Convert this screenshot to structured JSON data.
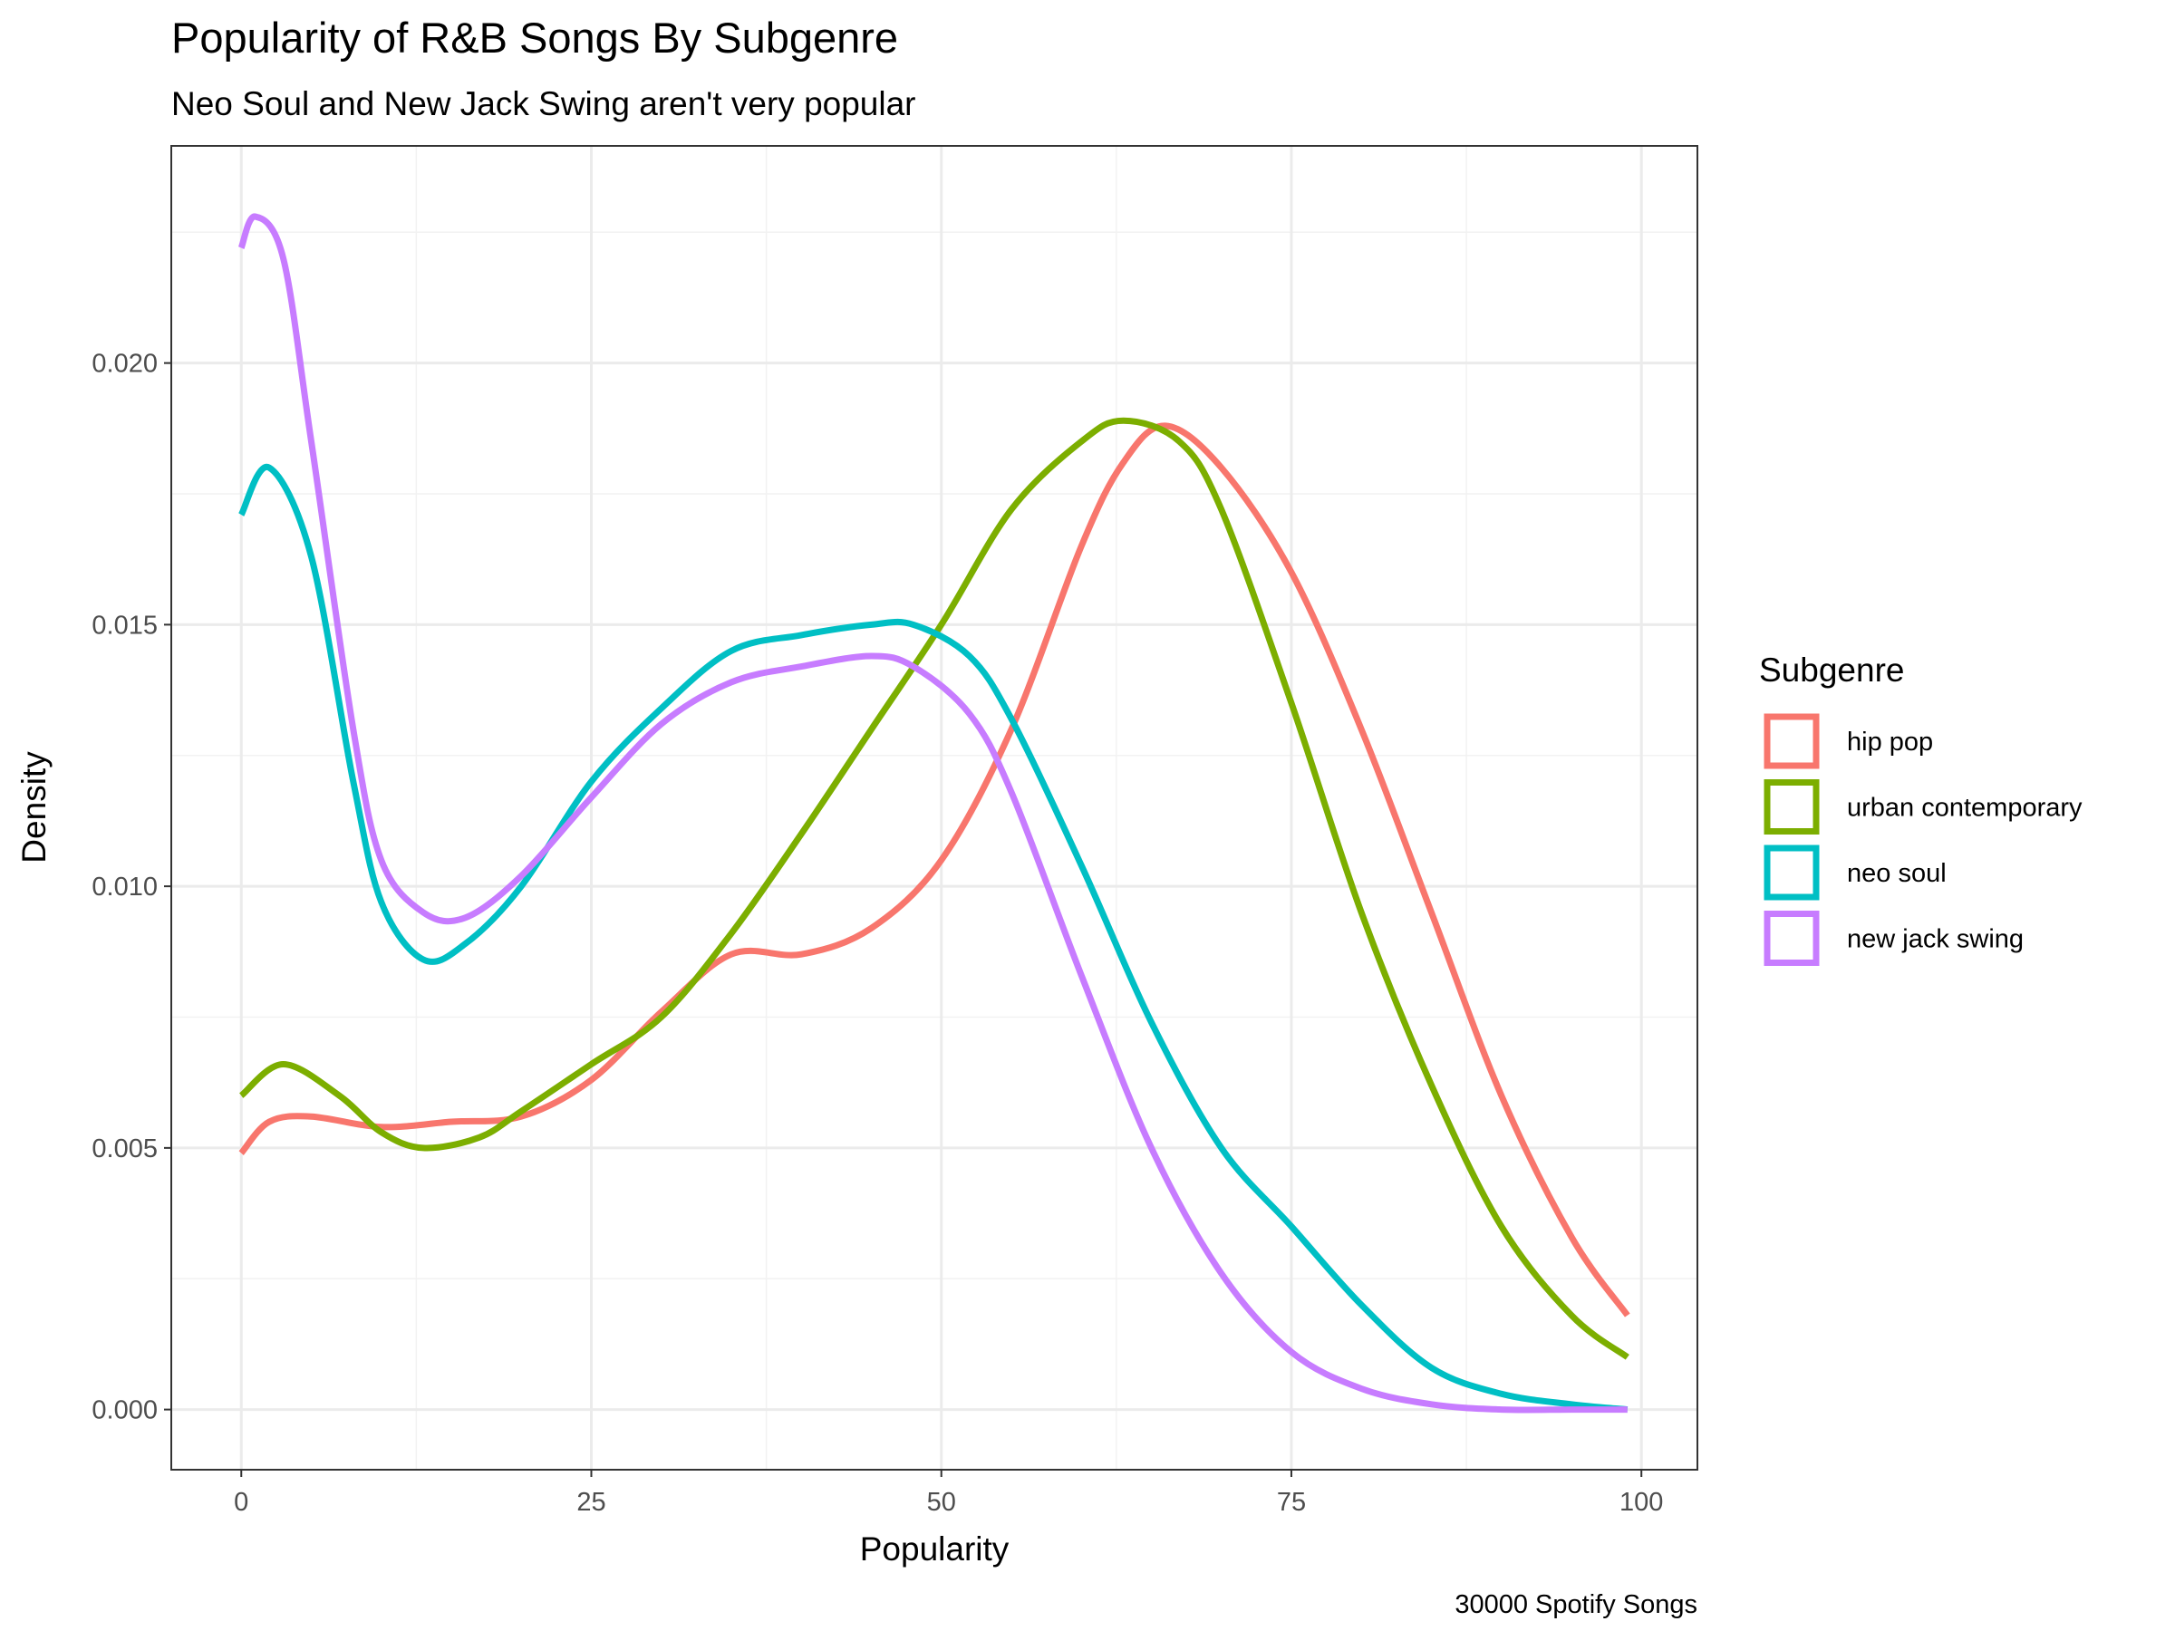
{
  "chart_data": {
    "type": "line",
    "title": "Popularity of R&B Songs By Subgenre",
    "subtitle": "Neo Soul and New Jack Swing aren't very popular",
    "xlabel": "Popularity",
    "ylabel": "Density",
    "caption": "30000 Spotify Songs",
    "xlim": [
      -5,
      104
    ],
    "ylim": [
      -0.00115,
      0.02415
    ],
    "x_ticks": [
      0,
      25,
      50,
      75,
      100
    ],
    "x_tick_labels": [
      "0",
      "25",
      "50",
      "75",
      "100"
    ],
    "y_ticks": [
      0.0,
      0.005,
      0.01,
      0.015,
      0.02
    ],
    "y_tick_labels": [
      "0.000",
      "0.005",
      "0.010",
      "0.015",
      "0.020"
    ],
    "grid": true,
    "legend": {
      "title": "Subgenre",
      "position": "right"
    },
    "series": [
      {
        "name": "hip pop",
        "color": "#F8766D",
        "x": [
          0,
          2,
          5,
          10,
          15,
          20,
          25,
          30,
          35,
          40,
          45,
          50,
          55,
          60,
          63,
          66,
          70,
          75,
          80,
          85,
          90,
          95,
          99
        ],
        "y": [
          0.0049,
          0.0055,
          0.0056,
          0.0054,
          0.0055,
          0.0056,
          0.0063,
          0.0076,
          0.0087,
          0.0087,
          0.0092,
          0.0105,
          0.013,
          0.0165,
          0.0181,
          0.0188,
          0.018,
          0.016,
          0.013,
          0.0095,
          0.006,
          0.0033,
          0.0018
        ]
      },
      {
        "name": "urban contemporary",
        "color": "#7CAE00",
        "x": [
          0,
          3,
          7,
          10,
          13,
          17,
          20,
          25,
          30,
          35,
          40,
          45,
          50,
          55,
          60,
          63,
          67,
          70,
          75,
          80,
          85,
          90,
          95,
          99
        ],
        "y": [
          0.006,
          0.0066,
          0.006,
          0.0053,
          0.005,
          0.0052,
          0.0057,
          0.0066,
          0.0075,
          0.0091,
          0.011,
          0.013,
          0.015,
          0.0172,
          0.0185,
          0.0189,
          0.0185,
          0.0172,
          0.0135,
          0.0095,
          0.0062,
          0.0035,
          0.0018,
          0.001
        ]
      },
      {
        "name": "neo soul",
        "color": "#00BFC4",
        "x": [
          0,
          2,
          5,
          8,
          10,
          13,
          16,
          20,
          25,
          30,
          35,
          40,
          45,
          48,
          52,
          55,
          60,
          65,
          70,
          75,
          80,
          85,
          90,
          95,
          99
        ],
        "y": [
          0.0171,
          0.018,
          0.0163,
          0.012,
          0.0097,
          0.0086,
          0.0089,
          0.01,
          0.012,
          0.0134,
          0.0145,
          0.0148,
          0.015,
          0.015,
          0.0144,
          0.0132,
          0.0104,
          0.0074,
          0.005,
          0.0035,
          0.002,
          0.0008,
          0.0003,
          0.0001,
          0.0
        ]
      },
      {
        "name": "new jack swing",
        "color": "#C77CFF",
        "x": [
          0,
          1,
          3,
          5,
          8,
          10,
          13,
          16,
          20,
          25,
          30,
          35,
          40,
          45,
          48,
          52,
          55,
          60,
          65,
          70,
          75,
          80,
          85,
          90,
          95,
          99
        ],
        "y": [
          0.0222,
          0.0228,
          0.022,
          0.0185,
          0.013,
          0.0105,
          0.0095,
          0.0094,
          0.0102,
          0.0117,
          0.0131,
          0.0139,
          0.0142,
          0.0144,
          0.0142,
          0.0133,
          0.0118,
          0.0083,
          0.005,
          0.0026,
          0.0011,
          0.0004,
          0.0001,
          0.0,
          0.0,
          0.0
        ]
      }
    ]
  }
}
